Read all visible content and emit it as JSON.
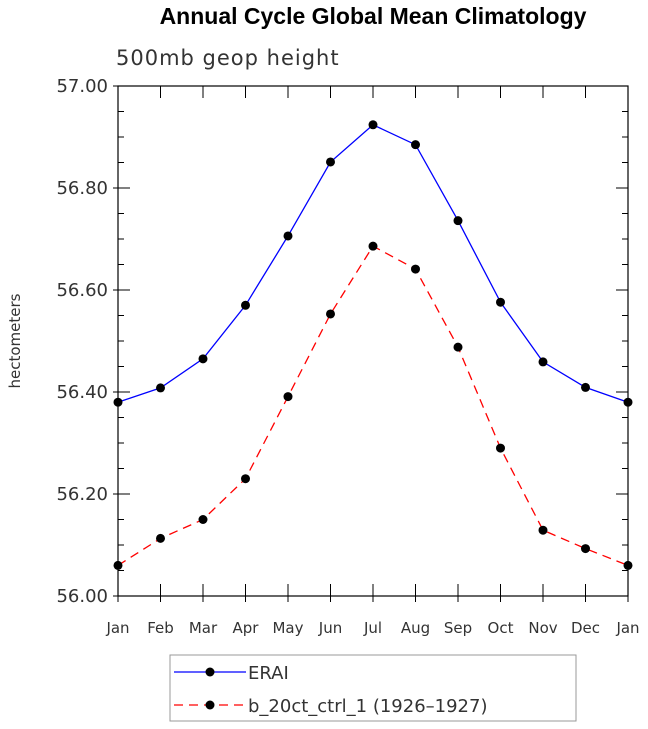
{
  "chart_data": {
    "type": "line",
    "title": "Annual Cycle Global Mean Climatology",
    "subtitle": "500mb geop height",
    "xlabel": "",
    "ylabel": "hectometers",
    "categories": [
      "Jan",
      "Feb",
      "Mar",
      "Apr",
      "May",
      "Jun",
      "Jul",
      "Aug",
      "Sep",
      "Oct",
      "Nov",
      "Dec",
      "Jan"
    ],
    "ylim": [
      56.0,
      57.0
    ],
    "yticks": [
      "56.00",
      "56.20",
      "56.40",
      "56.60",
      "56.80",
      "57.00"
    ],
    "legend_position": "bottom-center",
    "series": [
      {
        "name": "ERAI",
        "color": "#0000ff",
        "dash": "solid",
        "values": [
          56.38,
          56.408,
          56.465,
          56.57,
          56.706,
          56.851,
          56.924,
          56.885,
          56.736,
          56.576,
          56.459,
          56.409,
          56.38
        ]
      },
      {
        "name": "b_20ct_ctrl_1 (1926–1927)",
        "color": "#ff0000",
        "dash": "dashed",
        "values": [
          56.06,
          56.113,
          56.15,
          56.23,
          56.391,
          56.553,
          56.686,
          56.641,
          56.488,
          56.29,
          56.129,
          56.093,
          56.06
        ]
      }
    ]
  }
}
